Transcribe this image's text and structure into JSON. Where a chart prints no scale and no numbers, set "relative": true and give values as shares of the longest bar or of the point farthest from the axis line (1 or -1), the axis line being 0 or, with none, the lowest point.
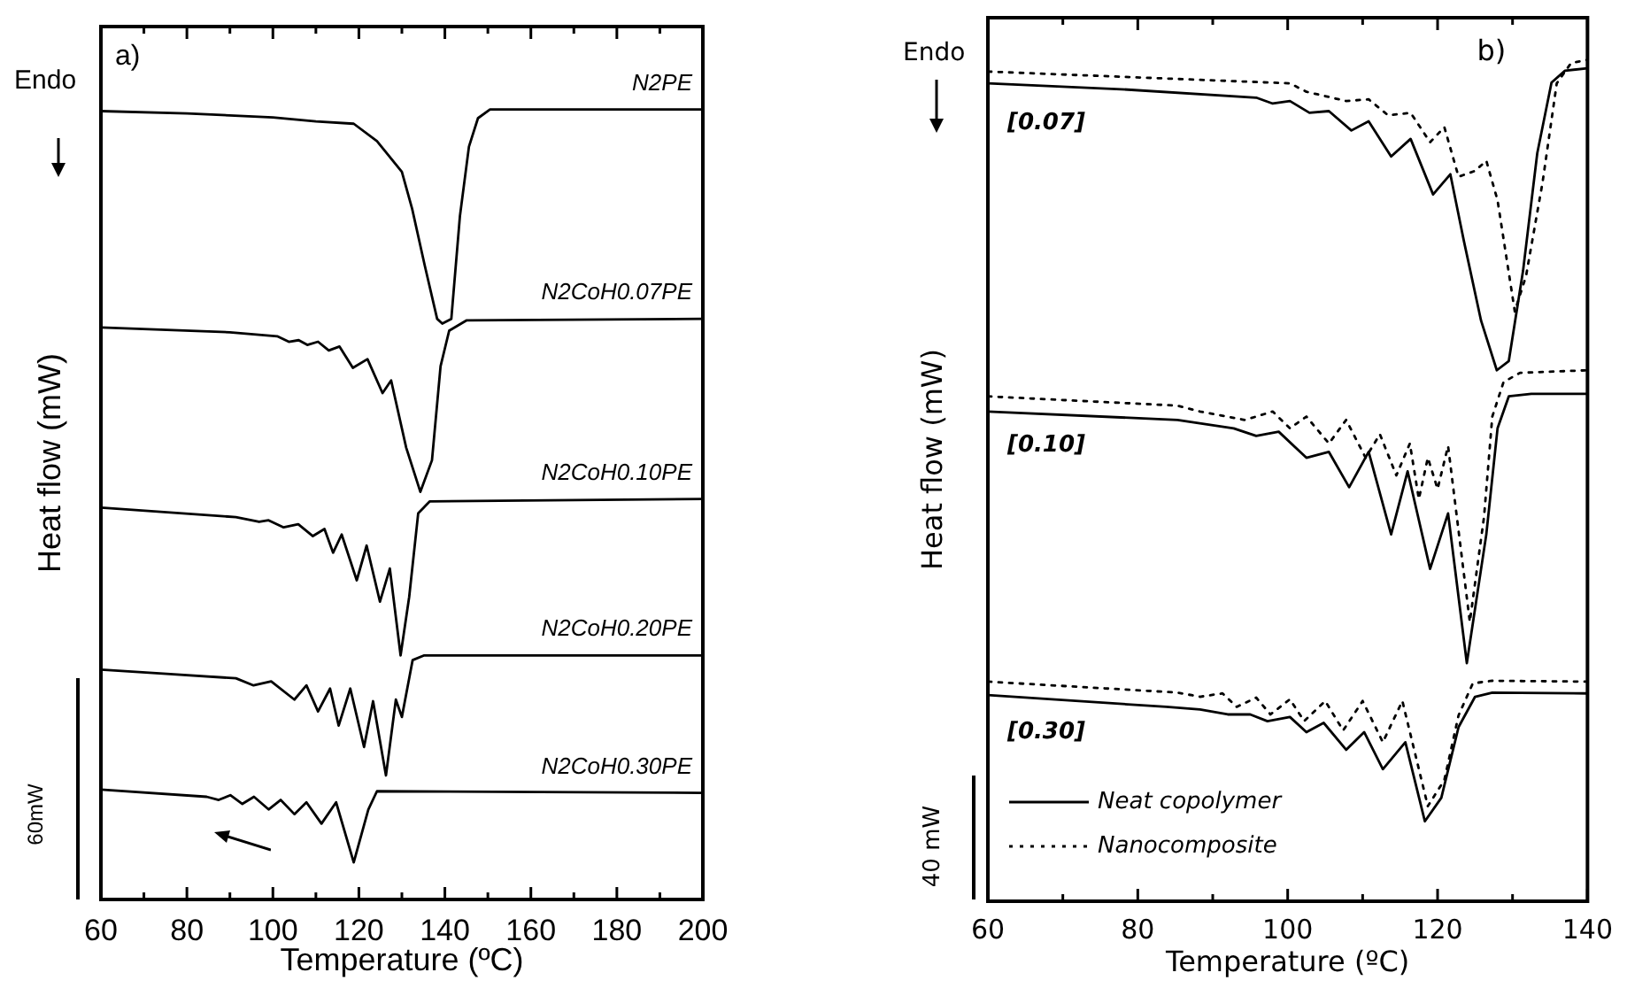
{
  "chart_data": [
    {
      "type": "line",
      "title": "a)",
      "xlabel": "Temperature (ºC)",
      "ylabel": "Heat flow (mW)",
      "relative": true,
      "xlim": [
        60,
        200
      ],
      "xticks": [
        60,
        {
          "value": 70,
          "label": null
        },
        80,
        {
          "value": 90,
          "label": null
        },
        100,
        {
          "value": 110,
          "label": null
        },
        120,
        {
          "value": 130,
          "label": null
        },
        140,
        {
          "value": 150,
          "label": null
        },
        160,
        {
          "value": 170,
          "label": null
        },
        180,
        {
          "value": 190,
          "label": null
        },
        200
      ],
      "legend": false,
      "marker": "none",
      "annotations": [
        "Endo",
        "60mW"
      ],
      "series": [
        {
          "name": "N2PE",
          "color": "#000000",
          "x": [
            60,
            80,
            100,
            110,
            118.8,
            124.2,
            130,
            132.4,
            135.3,
            138.2,
            139.4,
            141.5,
            143.5,
            145.6,
            147.7,
            150.5,
            200
          ],
          "values": [
            0.998,
            0.995,
            0.99,
            0.985,
            0.982,
            0.96,
            0.921,
            0.874,
            0.803,
            0.735,
            0.729,
            0.735,
            0.865,
            0.953,
            0.989,
            1.0,
            1.0
          ]
        },
        {
          "name": "N2CoH0.07PE",
          "color": "#000000",
          "x": [
            60,
            90,
            101,
            103.7,
            106,
            108,
            110.5,
            113,
            115.5,
            118.6,
            122,
            125.5,
            127.5,
            131,
            134.3,
            137,
            139,
            141,
            145,
            200
          ],
          "values": [
            0.724,
            0.718,
            0.713,
            0.706,
            0.708,
            0.702,
            0.706,
            0.695,
            0.7,
            0.673,
            0.684,
            0.641,
            0.657,
            0.572,
            0.516,
            0.556,
            0.675,
            0.72,
            0.733,
            0.735
          ]
        },
        {
          "name": "N2CoH0.10PE",
          "color": "#000000",
          "x": [
            60,
            91.4,
            96.8,
            99,
            102.5,
            105.9,
            109.3,
            112,
            114,
            116,
            119.5,
            121.8,
            124.9,
            127.2,
            129.7,
            131.7,
            133.8,
            136.5,
            200
          ],
          "values": [
            0.496,
            0.484,
            0.478,
            0.48,
            0.471,
            0.475,
            0.46,
            0.469,
            0.439,
            0.462,
            0.404,
            0.448,
            0.377,
            0.419,
            0.309,
            0.383,
            0.489,
            0.504,
            0.507
          ]
        },
        {
          "name": "N2CoH0.20PE",
          "color": "#000000",
          "x": [
            60,
            91.4,
            95.5,
            99.6,
            105,
            107.8,
            110.5,
            113.3,
            115.3,
            118,
            121.2,
            123.3,
            126.3,
            128.6,
            130,
            132.5,
            135.2,
            200
          ],
          "values": [
            0.291,
            0.28,
            0.271,
            0.276,
            0.253,
            0.271,
            0.238,
            0.267,
            0.22,
            0.267,
            0.193,
            0.251,
            0.157,
            0.253,
            0.231,
            0.303,
            0.309,
            0.309
          ]
        },
        {
          "name": "N2CoH0.30PE",
          "color": "#000000",
          "x": [
            60,
            84.6,
            87.4,
            90.1,
            92.9,
            95.6,
            99,
            101.8,
            105,
            107.8,
            111.3,
            114.7,
            118.8,
            122.2,
            124.2,
            200
          ],
          "values": [
            0.139,
            0.13,
            0.126,
            0.132,
            0.121,
            0.13,
            0.114,
            0.126,
            0.108,
            0.123,
            0.096,
            0.123,
            0.047,
            0.114,
            0.137,
            0.135
          ]
        }
      ]
    },
    {
      "type": "line",
      "title": "b)",
      "xlabel": "Temperature (ºC)",
      "ylabel": "Heat flow (mW)",
      "relative": true,
      "xlim": [
        60,
        140
      ],
      "xticks": [
        60,
        {
          "value": 70,
          "label": null
        },
        80,
        {
          "value": 90,
          "label": null
        },
        100,
        {
          "value": 110,
          "label": null
        },
        120,
        {
          "value": 130,
          "label": null
        },
        140
      ],
      "legend": "bottom left",
      "marker": "none",
      "annotations": [
        "Endo",
        "40 mW",
        "[0.07]",
        "[0.10]",
        "[0.30]"
      ],
      "series": [
        {
          "name": "Neat copolymer",
          "color": "#000000",
          "line_style": "solid",
          "x": [
            60,
            77.8,
            95.8,
            98,
            100.3,
            102.9,
            105.5,
            108.5,
            110.8,
            113.8,
            116.4,
            119.4,
            121.7,
            123.5,
            125.8,
            127.9,
            129.5,
            131.4,
            133.3,
            135.2,
            137,
            140
          ],
          "values": [
            0.972,
            0.965,
            0.955,
            0.948,
            0.951,
            0.937,
            0.939,
            0.916,
            0.927,
            0.885,
            0.906,
            0.84,
            0.864,
            0.785,
            0.69,
            0.631,
            0.642,
            0.749,
            0.889,
            0.973,
            0.987,
            0.99
          ]
        },
        {
          "name": "Nanocomposite",
          "color": "#000000",
          "line_style": "dotted",
          "x": [
            60,
            100.3,
            102.5,
            107.8,
            110.8,
            113.4,
            116.4,
            119,
            120.9,
            122.8,
            125,
            126.5,
            128,
            130.3,
            131.8,
            134,
            135.9,
            137.8,
            140
          ],
          "values": [
            0.986,
            0.972,
            0.962,
            0.951,
            0.953,
            0.934,
            0.937,
            0.902,
            0.92,
            0.861,
            0.868,
            0.88,
            0.833,
            0.701,
            0.743,
            0.854,
            0.972,
            0.996,
            1.0
          ]
        },
        {
          "color": "#000000",
          "line_style": "solid",
          "x": [
            60,
            85.3,
            92.8,
            95.8,
            98.8,
            102.5,
            105.5,
            108.2,
            110.8,
            113.8,
            116,
            119,
            121.4,
            123.9,
            126.5,
            128,
            129.5,
            132.5,
            140
          ],
          "values": [
            0.582,
            0.572,
            0.562,
            0.553,
            0.558,
            0.527,
            0.534,
            0.492,
            0.534,
            0.436,
            0.511,
            0.395,
            0.461,
            0.283,
            0.436,
            0.562,
            0.6,
            0.603,
            0.603
          ]
        },
        {
          "color": "#000000",
          "line_style": "dotted",
          "x": [
            60,
            85.3,
            88.3,
            94.3,
            98,
            100.3,
            102.5,
            105.5,
            107.8,
            110.4,
            112.3,
            114.5,
            116.3,
            117.5,
            118.7,
            120,
            121.4,
            124.3,
            126.2,
            127.3,
            128.8,
            131,
            140
          ],
          "values": [
            0.6,
            0.589,
            0.582,
            0.572,
            0.582,
            0.562,
            0.576,
            0.544,
            0.572,
            0.527,
            0.555,
            0.506,
            0.544,
            0.478,
            0.527,
            0.49,
            0.541,
            0.332,
            0.457,
            0.576,
            0.617,
            0.628,
            0.631
          ]
        },
        {
          "color": "#000000",
          "line_style": "solid",
          "x": [
            60,
            83.8,
            88.3,
            92,
            95,
            97.3,
            100.3,
            102.5,
            104.8,
            107.8,
            110.2,
            112.7,
            115.7,
            118.3,
            120.5,
            122.8,
            125,
            127.3,
            140
          ],
          "values": [
            0.245,
            0.231,
            0.228,
            0.222,
            0.222,
            0.214,
            0.219,
            0.201,
            0.212,
            0.18,
            0.201,
            0.157,
            0.189,
            0.095,
            0.123,
            0.207,
            0.243,
            0.248,
            0.247
          ]
        },
        {
          "color": "#000000",
          "line_style": "dotted",
          "x": [
            60,
            85.3,
            88.3,
            91.3,
            93.2,
            95.8,
            97.7,
            100.3,
            102.2,
            105,
            107.4,
            110,
            112.7,
            115.3,
            118.7,
            120.9,
            122.8,
            124.7,
            127.3,
            140
          ],
          "values": [
            0.261,
            0.248,
            0.243,
            0.247,
            0.231,
            0.242,
            0.222,
            0.24,
            0.214,
            0.238,
            0.203,
            0.238,
            0.189,
            0.238,
            0.113,
            0.144,
            0.221,
            0.259,
            0.262,
            0.261
          ]
        }
      ]
    }
  ]
}
